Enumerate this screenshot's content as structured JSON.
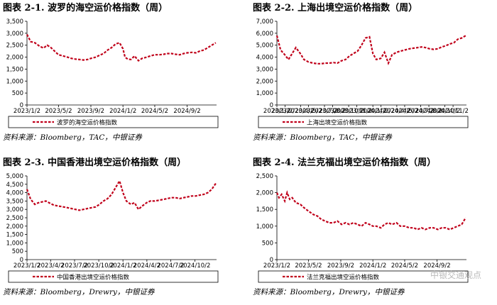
{
  "panels": [
    {
      "title": "图表 2-1. 波罗的海空运价格指数（周）",
      "source": "资料来源：Bloomberg，TAC，中银证券"
    },
    {
      "title": "图表 2-2. 上海出境空运价格指数（周）",
      "source": "资料来源：Bloomberg，TAC，中银证券"
    },
    {
      "title": "图表 2-3. 中国香港出境空运价格指数（周）",
      "source": "资料来源：Bloomberg，Drewry，中银证券"
    },
    {
      "title": "图表 2-4. 法兰克福出境空运价格指数（周）",
      "source": "资料来源：Bloomberg，Drewry，中银证券"
    }
  ],
  "watermark": "中银交通观点",
  "colors": {
    "series": "#c0001a",
    "axis": "#000000"
  },
  "chart_data": [
    {
      "type": "line",
      "title": "图表 2-1. 波罗的海空运价格指数（周）",
      "series": [
        {
          "name": "波罗的海空运价格指数"
        }
      ],
      "legend": "bottom",
      "grid": false,
      "xlim": [
        "2023-01-02",
        "2024-12-23"
      ],
      "ylim": [
        0,
        3500
      ],
      "yticks": [
        0,
        500,
        1000,
        1500,
        2000,
        2500,
        3000,
        3500
      ],
      "ytick_labels": [
        "0",
        "500",
        "1,000",
        "1,500",
        "2,000",
        "2,500",
        "3,000",
        "3,500"
      ],
      "xtick_labels": [
        "2023/1/2",
        "2023/5/2",
        "2023/9/2",
        "2024/1/2",
        "2024/5/2",
        "2024/9/2"
      ],
      "xtick_dates": [
        "2023-01-02",
        "2023-05-02",
        "2023-09-02",
        "2024-01-02",
        "2024-05-02",
        "2024-09-02"
      ],
      "x": [
        "2023-01-02",
        "2023-01-16",
        "2023-02-01",
        "2023-02-20",
        "2023-03-06",
        "2023-03-20",
        "2023-04-03",
        "2023-04-17",
        "2023-05-02",
        "2023-05-20",
        "2023-06-05",
        "2023-06-20",
        "2023-07-05",
        "2023-07-20",
        "2023-08-05",
        "2023-08-20",
        "2023-09-02",
        "2023-09-20",
        "2023-10-05",
        "2023-10-20",
        "2023-11-05",
        "2023-11-20",
        "2023-12-05",
        "2023-12-20",
        "2024-01-02",
        "2024-01-10",
        "2024-01-20",
        "2024-02-01",
        "2024-02-15",
        "2024-03-01",
        "2024-03-15",
        "2024-04-01",
        "2024-04-15",
        "2024-05-02",
        "2024-05-20",
        "2024-06-05",
        "2024-06-20",
        "2024-07-05",
        "2024-07-20",
        "2024-08-05",
        "2024-08-20",
        "2024-09-02",
        "2024-09-20",
        "2024-10-05",
        "2024-10-20",
        "2024-11-05",
        "2024-11-20",
        "2024-12-05",
        "2024-12-20"
      ],
      "y": [
        2950,
        2650,
        2600,
        2450,
        2380,
        2500,
        2400,
        2250,
        2100,
        2050,
        2000,
        1950,
        1920,
        1900,
        1880,
        1900,
        1950,
        2000,
        2080,
        2150,
        2300,
        2400,
        2550,
        2600,
        2350,
        2000,
        1920,
        1900,
        2050,
        1850,
        1950,
        2000,
        2050,
        2100,
        2100,
        2120,
        2150,
        2150,
        2120,
        2100,
        2150,
        2180,
        2200,
        2180,
        2250,
        2300,
        2400,
        2500,
        2600
      ]
    },
    {
      "type": "line",
      "title": "图表 2-2. 上海出境空运价格指数（周）",
      "series": [
        {
          "name": "上海出境空运价格指数"
        }
      ],
      "legend": "bottom",
      "grid": false,
      "xlim": [
        "2023-01-02",
        "2024-12-23"
      ],
      "ylim": [
        0,
        7000
      ],
      "yticks": [
        0,
        1000,
        2000,
        3000,
        4000,
        5000,
        6000,
        7000
      ],
      "ytick_labels": [
        "0",
        "1,000",
        "2,000",
        "3,000",
        "4,000",
        "5,000",
        "6,000",
        "7,000"
      ],
      "xtick_labels": [
        "2023/1/2",
        "2023/2/2",
        "2023/4/2",
        "2023/5/2",
        "2023/7/2",
        "2023/8/2",
        "2023/10/2",
        "2023/11/2",
        "2024/1/2",
        "2024/2/2",
        "2024/4/2",
        "2024/5/2",
        "2024/7/2",
        "2024/8/2",
        "2024/10/2",
        "2024/11/2"
      ],
      "xtick_dates": [
        "2023-01-02",
        "2023-02-02",
        "2023-04-02",
        "2023-05-02",
        "2023-07-02",
        "2023-08-02",
        "2023-10-02",
        "2023-11-02",
        "2024-01-02",
        "2024-02-02",
        "2024-04-02",
        "2024-05-02",
        "2024-07-02",
        "2024-08-02",
        "2024-10-02",
        "2024-11-02"
      ],
      "x": [
        "2023-01-02",
        "2023-01-16",
        "2023-02-01",
        "2023-02-15",
        "2023-03-01",
        "2023-03-15",
        "2023-04-01",
        "2023-04-15",
        "2023-05-02",
        "2023-05-20",
        "2023-06-05",
        "2023-06-20",
        "2023-07-05",
        "2023-07-20",
        "2023-08-05",
        "2023-08-20",
        "2023-09-05",
        "2023-09-20",
        "2023-10-05",
        "2023-10-20",
        "2023-11-05",
        "2023-11-20",
        "2023-12-05",
        "2023-12-20",
        "2024-01-02",
        "2024-01-15",
        "2024-02-01",
        "2024-02-15",
        "2024-03-01",
        "2024-03-15",
        "2024-04-01",
        "2024-04-15",
        "2024-05-02",
        "2024-05-20",
        "2024-06-05",
        "2024-06-20",
        "2024-07-05",
        "2024-07-20",
        "2024-08-05",
        "2024-08-20",
        "2024-09-05",
        "2024-09-20",
        "2024-10-05",
        "2024-10-20",
        "2024-11-05",
        "2024-11-20",
        "2024-12-05",
        "2024-12-20"
      ],
      "y": [
        5800,
        4600,
        4200,
        3800,
        4300,
        4800,
        4300,
        3800,
        3600,
        3500,
        3450,
        3450,
        3500,
        3500,
        3550,
        3500,
        3700,
        3800,
        4100,
        4300,
        4500,
        5000,
        5600,
        5700,
        4300,
        3800,
        3900,
        4400,
        3500,
        4200,
        4400,
        4500,
        4600,
        4700,
        4750,
        4800,
        4850,
        4800,
        4700,
        4650,
        4700,
        4850,
        4950,
        5100,
        5200,
        5500,
        5600,
        5800
      ]
    },
    {
      "type": "line",
      "title": "图表 2-3. 中国香港出境空运价格指数（周）",
      "series": [
        {
          "name": "中国香港出境空运价格指数"
        }
      ],
      "legend": "bottom",
      "grid": false,
      "xlim": [
        "2023-01-02",
        "2024-12-23"
      ],
      "ylim": [
        0,
        5000
      ],
      "yticks": [
        0,
        500,
        1000,
        1500,
        2000,
        2500,
        3000,
        3500,
        4000,
        4500,
        5000
      ],
      "ytick_labels": [
        "0",
        "500",
        "1,000",
        "1,500",
        "2,000",
        "2,500",
        "3,000",
        "3,500",
        "4,000",
        "4,500",
        "5,000"
      ],
      "xtick_labels": [
        "2023/1/2",
        "2023/4/2",
        "2023/7/2",
        "2023/10/2",
        "2024/1/2",
        "2024/4/2",
        "2024/7/2",
        "2024/10/2"
      ],
      "xtick_dates": [
        "2023-01-02",
        "2023-04-02",
        "2023-07-02",
        "2023-10-02",
        "2024-01-02",
        "2024-04-02",
        "2024-07-02",
        "2024-10-02"
      ],
      "x": [
        "2023-01-02",
        "2023-01-16",
        "2023-02-01",
        "2023-02-15",
        "2023-03-01",
        "2023-03-15",
        "2023-04-01",
        "2023-04-15",
        "2023-05-02",
        "2023-05-20",
        "2023-06-05",
        "2023-06-20",
        "2023-07-05",
        "2023-07-20",
        "2023-08-05",
        "2023-08-20",
        "2023-09-05",
        "2023-09-20",
        "2023-10-05",
        "2023-10-20",
        "2023-11-05",
        "2023-11-20",
        "2023-12-05",
        "2023-12-20",
        "2024-01-02",
        "2024-01-15",
        "2024-02-01",
        "2024-02-15",
        "2024-03-01",
        "2024-03-15",
        "2024-04-01",
        "2024-04-15",
        "2024-05-02",
        "2024-05-20",
        "2024-06-05",
        "2024-06-20",
        "2024-07-05",
        "2024-07-20",
        "2024-08-05",
        "2024-08-20",
        "2024-09-05",
        "2024-09-20",
        "2024-10-05",
        "2024-10-20",
        "2024-11-05",
        "2024-11-20",
        "2024-12-05",
        "2024-12-20"
      ],
      "y": [
        4200,
        3600,
        3300,
        3400,
        3450,
        3500,
        3350,
        3250,
        3200,
        3150,
        3100,
        3050,
        3000,
        2950,
        3000,
        3050,
        3100,
        3150,
        3300,
        3500,
        3650,
        3900,
        4300,
        4700,
        4000,
        3500,
        3300,
        3400,
        3000,
        3200,
        3400,
        3500,
        3500,
        3550,
        3600,
        3650,
        3700,
        3700,
        3650,
        3700,
        3750,
        3800,
        3800,
        3850,
        3900,
        4000,
        4200,
        4550
      ]
    },
    {
      "type": "line",
      "title": "图表 2-4. 法兰克福出境空运价格指数（周）",
      "series": [
        {
          "name": "法兰克福出境空运价格指数"
        }
      ],
      "legend": "bottom",
      "grid": false,
      "xlim": [
        "2023-01-02",
        "2024-12-23"
      ],
      "ylim": [
        0,
        2500
      ],
      "yticks": [
        0,
        500,
        1000,
        1500,
        2000,
        2500
      ],
      "ytick_labels": [
        "0",
        "500",
        "1,000",
        "1,500",
        "2,000",
        "2,500"
      ],
      "xtick_labels": [
        "2023/1/2",
        "2023/5/2",
        "2023/9/2",
        "2024/1/2",
        "2024/5/2",
        "2024/9/2"
      ],
      "xtick_dates": [
        "2023-01-02",
        "2023-05-02",
        "2023-09-02",
        "2024-01-02",
        "2024-05-02",
        "2024-09-02"
      ],
      "x": [
        "2023-01-02",
        "2023-01-10",
        "2023-01-20",
        "2023-02-01",
        "2023-02-10",
        "2023-02-20",
        "2023-03-01",
        "2023-03-15",
        "2023-04-01",
        "2023-04-15",
        "2023-05-02",
        "2023-05-20",
        "2023-06-05",
        "2023-06-20",
        "2023-07-05",
        "2023-07-20",
        "2023-08-05",
        "2023-08-20",
        "2023-09-05",
        "2023-09-20",
        "2023-10-05",
        "2023-10-20",
        "2023-11-05",
        "2023-11-20",
        "2023-12-05",
        "2023-12-20",
        "2024-01-02",
        "2024-01-15",
        "2024-02-01",
        "2024-02-15",
        "2024-03-01",
        "2024-03-15",
        "2024-04-01",
        "2024-04-15",
        "2024-05-02",
        "2024-05-20",
        "2024-06-05",
        "2024-06-20",
        "2024-07-05",
        "2024-07-20",
        "2024-08-05",
        "2024-08-20",
        "2024-09-05",
        "2024-09-20",
        "2024-10-05",
        "2024-10-20",
        "2024-11-05",
        "2024-11-20",
        "2024-12-05",
        "2024-12-20"
      ],
      "y": [
        2000,
        1850,
        1950,
        1750,
        2000,
        1800,
        1850,
        1700,
        1650,
        1550,
        1450,
        1350,
        1300,
        1200,
        1150,
        1100,
        1100,
        1150,
        1050,
        1100,
        1050,
        1100,
        1050,
        1000,
        1100,
        1050,
        1000,
        1000,
        950,
        1050,
        1100,
        1050,
        1100,
        1000,
        1000,
        950,
        950,
        900,
        950,
        900,
        950,
        950,
        900,
        950,
        950,
        900,
        950,
        1000,
        1050,
        1250
      ]
    }
  ]
}
